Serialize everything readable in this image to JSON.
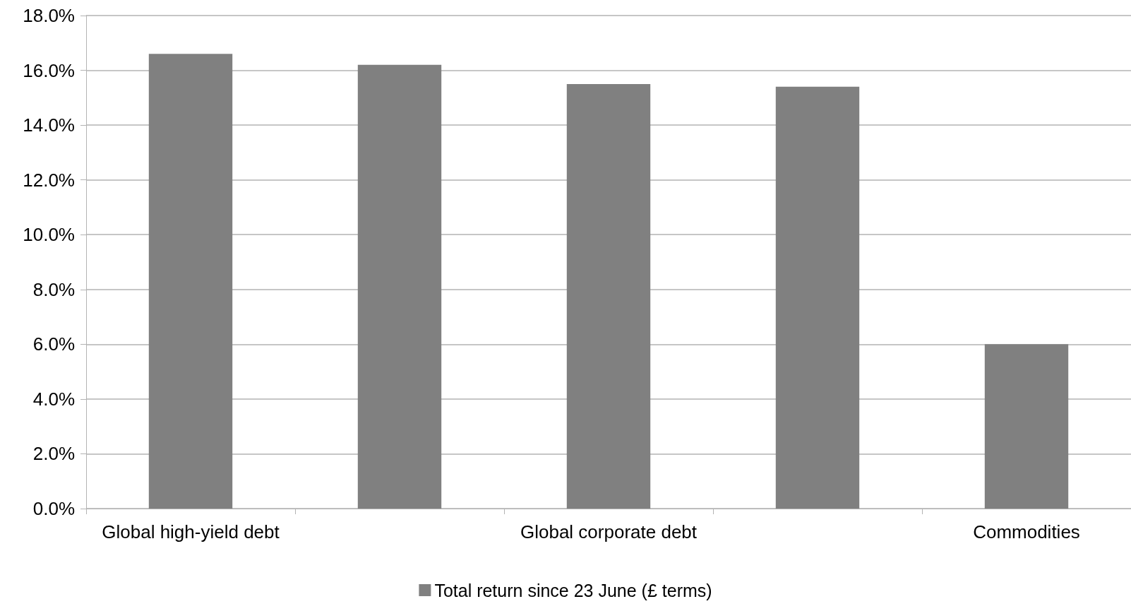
{
  "chart_data": {
    "type": "bar",
    "categories": [
      "Global high-yield debt",
      null,
      "Global corporate debt",
      null,
      "Commodities"
    ],
    "series": [
      {
        "name": "Total return since 23 June (£ terms)",
        "color": "#808080",
        "values": [
          16.6,
          16.2,
          15.5,
          15.4,
          6.0
        ]
      }
    ],
    "ylim": [
      0,
      18
    ],
    "yticks": [
      {
        "value": 0,
        "label": "0.0%"
      },
      {
        "value": 2,
        "label": "2.0%"
      },
      {
        "value": 4,
        "label": "4.0%"
      },
      {
        "value": 6,
        "label": "6.0%"
      },
      {
        "value": 8,
        "label": "8.0%"
      },
      {
        "value": 10,
        "label": "10.0%"
      },
      {
        "value": 12,
        "label": "12.0%"
      },
      {
        "value": 14,
        "label": "14.0%"
      },
      {
        "value": 16,
        "label": "16.0%"
      },
      {
        "value": 18,
        "label": "18.0%"
      }
    ],
    "grid": "y",
    "legend": "bottom"
  }
}
